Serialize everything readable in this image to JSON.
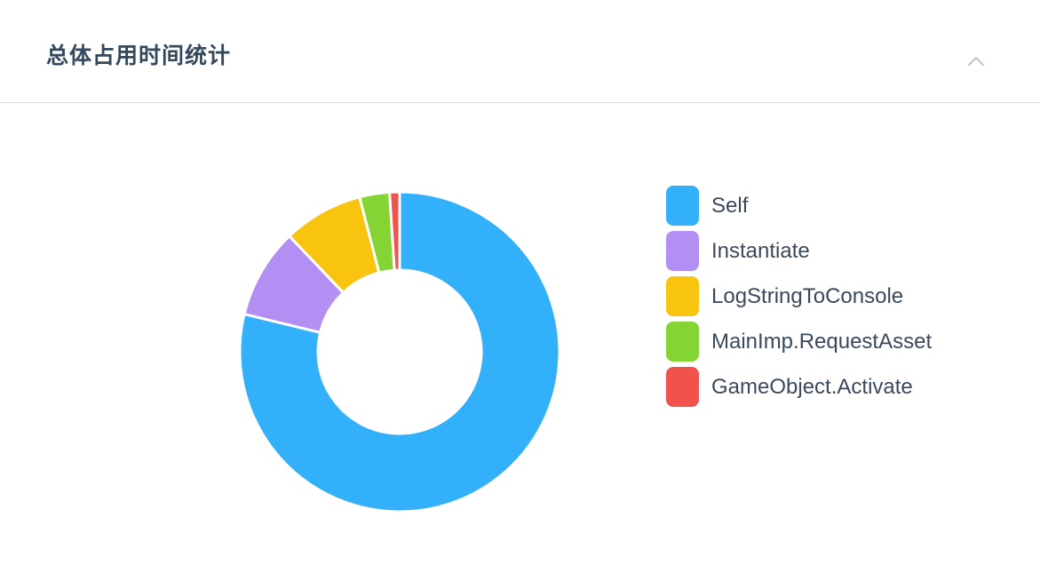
{
  "panel": {
    "title": "总体占用时间统计",
    "collapse_icon": "chevron-up-icon"
  },
  "chart_data": {
    "type": "pie",
    "categories": [
      "Self",
      "Instantiate",
      "LogStringToConsole",
      "MainImp.RequestAsset",
      "GameObject.Activate"
    ],
    "values": [
      78,
      9,
      8,
      3,
      1
    ],
    "colors": [
      "#33b0fa",
      "#b38ff4",
      "#f8c410",
      "#84d433",
      "#f0524c"
    ],
    "donut": true,
    "legend": "right",
    "title": ""
  }
}
